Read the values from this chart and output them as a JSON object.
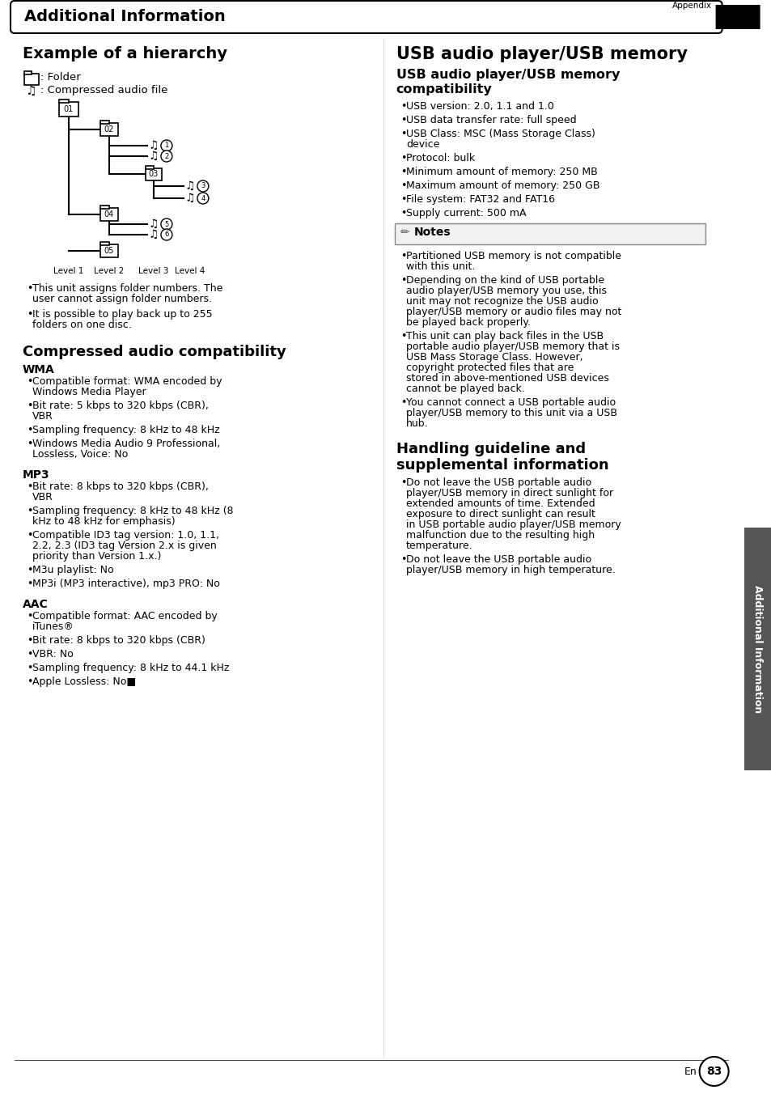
{
  "bg_color": "#ffffff",
  "page_width": 9.54,
  "page_height": 13.52,
  "header_title": "Additional Information",
  "header_tab": "Appendix",
  "side_tab": "Additional Information",
  "page_number": "83",
  "left_col": {
    "section1_title": "Example of a hierarchy",
    "legend_folder": ": Folder",
    "legend_audio": ": Compressed audio file",
    "hierarchy_notes": [
      "This unit assigns folder numbers. The user cannot assign folder numbers.",
      "It is possible to play back up to 255 folders on one disc."
    ],
    "section2_title": "Compressed audio compatibility",
    "wma_title": "WMA",
    "wma_bullets": [
      "Compatible format: WMA encoded by Windows Media Player",
      "Bit rate: 5 kbps to 320 kbps (CBR), VBR",
      "Sampling frequency: 8 kHz to 48 kHz",
      "Windows Media Audio 9 Professional, Lossless, Voice: No"
    ],
    "mp3_title": "MP3",
    "mp3_bullets": [
      "Bit rate: 8 kbps to 320 kbps (CBR), VBR",
      "Sampling frequency: 8 kHz to 48 kHz (8 kHz to 48 kHz for emphasis)",
      "Compatible ID3 tag version: 1.0, 1.1, 2.2, 2.3 (ID3 tag Version 2.x is given priority than Version 1.x.)",
      "M3u playlist: No",
      "MP3i (MP3 interactive), mp3 PRO: No"
    ],
    "aac_title": "AAC",
    "aac_bullets": [
      "Compatible format: AAC encoded by iTunes®",
      "Bit rate: 8 kbps to 320 kbps (CBR)",
      "VBR: No",
      "Sampling frequency: 8 kHz to 44.1 kHz",
      "Apple Lossless: No■"
    ]
  },
  "right_col": {
    "section1_title": "USB audio player/USB memory",
    "section1_sub": "USB audio player/USB memory compatibility",
    "usb_bullets": [
      "USB version: 2.0, 1.1 and 1.0",
      "USB data transfer rate: full speed",
      "USB Class: MSC (Mass Storage Class) device",
      "Protocol: bulk",
      "Minimum amount of memory: 250 MB",
      "Maximum amount of memory: 250 GB",
      "File system: FAT32 and FAT16",
      "Supply current: 500 mA"
    ],
    "notes_title": "Notes",
    "notes_bullets": [
      "Partitioned USB memory is not compatible with this unit.",
      "Depending on the kind of USB portable audio player/USB memory you use, this unit may not recognize the USB audio player/USB memory or audio files may not be played back properly.",
      "This unit can play back files in the USB portable audio player/USB memory that is USB Mass Storage Class. However, copyright protected files that are stored in above-mentioned USB devices cannot be played back.",
      "You cannot connect a USB portable audio player/USB memory to this unit via a USB hub."
    ],
    "section2_title": "Handling guideline and supplemental information",
    "handling_bullets": [
      "Do not leave the USB portable audio player/USB memory in direct sunlight for extended amounts of time. Extended exposure to direct sunlight can result in USB portable audio player/USB memory malfunction due to the resulting high temperature.",
      "Do not leave the USB portable audio player/USB memory in high temperature."
    ]
  }
}
